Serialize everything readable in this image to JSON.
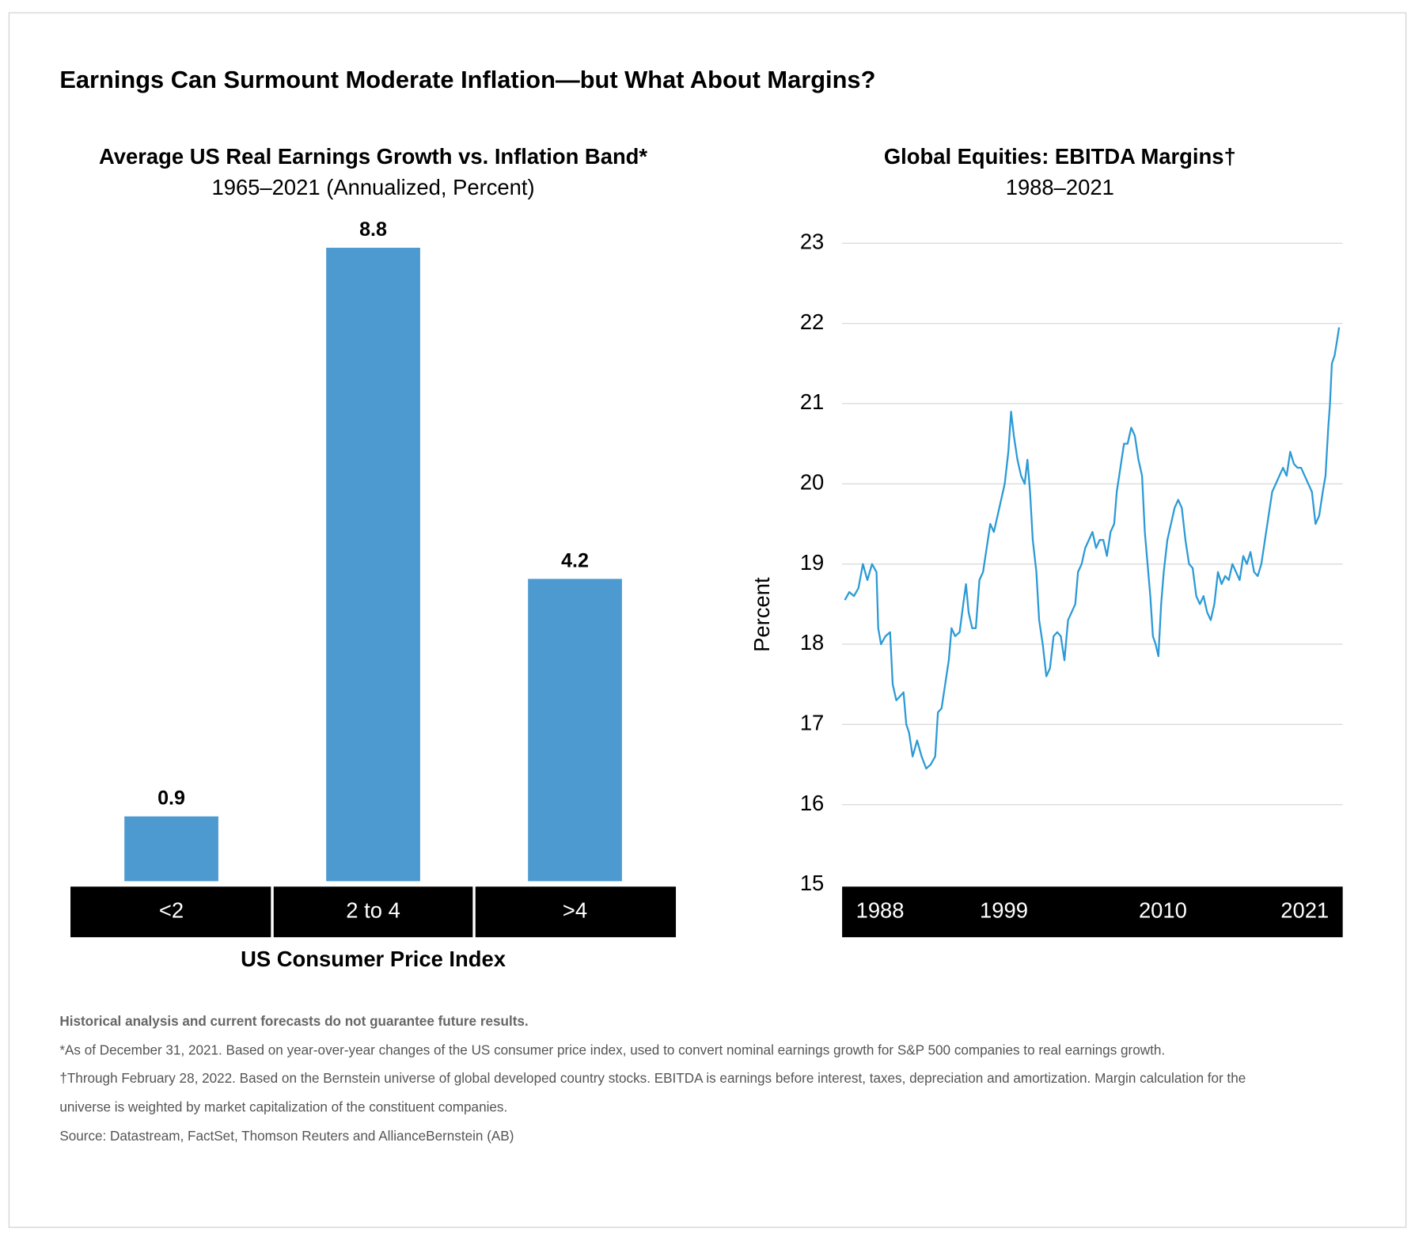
{
  "title": "Earnings Can Surmount Moderate Inflation—but What About Margins?",
  "chart_data": [
    {
      "type": "bar",
      "title": "Average US Real Earnings Growth vs. Inflation Band*",
      "subtitle": "1965–2021 (Annualized, Percent)",
      "x_label": "US Consumer Price Index",
      "categories": [
        "<2",
        "2 to 4",
        ">4"
      ],
      "values": [
        0.9,
        8.8,
        4.2
      ],
      "color": "#4d9ad1"
    },
    {
      "type": "line",
      "title": "Global Equities: EBITDA Margins†",
      "subtitle": "1988–2021",
      "y_label": "Percent",
      "color": "#2b9ad6",
      "grid": true,
      "xlim": [
        1988,
        2022.19
      ],
      "xticks": [
        1988,
        1999,
        2010,
        2021
      ],
      "ylim": [
        15,
        23
      ],
      "yticks": [
        15,
        16,
        17,
        18,
        19,
        20,
        21,
        22,
        23
      ],
      "x": [
        1988.0,
        1988.31,
        1988.63,
        1988.94,
        1989.25,
        1989.56,
        1989.88,
        1990.19,
        1990.31,
        1990.5,
        1990.81,
        1991.13,
        1991.31,
        1991.56,
        1991.81,
        1992.06,
        1992.25,
        1992.44,
        1992.69,
        1993.0,
        1993.31,
        1993.63,
        1993.94,
        1994.25,
        1994.44,
        1994.69,
        1994.94,
        1995.19,
        1995.38,
        1995.63,
        1995.94,
        1996.19,
        1996.38,
        1996.56,
        1996.81,
        1997.06,
        1997.31,
        1997.56,
        1997.81,
        1998.06,
        1998.31,
        1998.56,
        1998.81,
        1999.06,
        1999.31,
        1999.5,
        1999.69,
        1999.94,
        2000.19,
        2000.44,
        2000.63,
        2000.81,
        2001.0,
        2001.25,
        2001.44,
        2001.69,
        2001.94,
        2002.19,
        2002.44,
        2002.69,
        2002.94,
        2003.19,
        2003.44,
        2003.69,
        2003.94,
        2004.13,
        2004.38,
        2004.63,
        2004.88,
        2005.13,
        2005.38,
        2005.63,
        2005.88,
        2006.13,
        2006.38,
        2006.63,
        2006.81,
        2007.06,
        2007.31,
        2007.56,
        2007.81,
        2008.06,
        2008.31,
        2008.56,
        2008.75,
        2008.94,
        2009.13,
        2009.31,
        2009.5,
        2009.69,
        2009.88,
        2010.06,
        2010.31,
        2010.56,
        2010.81,
        2011.06,
        2011.31,
        2011.56,
        2011.81,
        2012.06,
        2012.31,
        2012.56,
        2012.81,
        2013.06,
        2013.31,
        2013.56,
        2013.81,
        2014.06,
        2014.31,
        2014.56,
        2014.81,
        2015.06,
        2015.31,
        2015.56,
        2015.81,
        2016.06,
        2016.31,
        2016.56,
        2016.81,
        2017.06,
        2017.31,
        2017.56,
        2017.81,
        2018.06,
        2018.31,
        2018.56,
        2018.81,
        2019.06,
        2019.31,
        2019.56,
        2019.81,
        2020.06,
        2020.31,
        2020.56,
        2020.81,
        2021.06,
        2021.25,
        2021.44,
        2021.56,
        2021.69,
        2021.88,
        2022.06,
        2022.19
      ],
      "values": [
        18.55,
        18.65,
        18.6,
        18.7,
        19.0,
        18.8,
        19.0,
        18.9,
        18.2,
        18.0,
        18.1,
        18.15,
        17.5,
        17.3,
        17.35,
        17.4,
        17.0,
        16.9,
        16.6,
        16.8,
        16.6,
        16.45,
        16.5,
        16.6,
        17.15,
        17.2,
        17.5,
        17.8,
        18.2,
        18.1,
        18.15,
        18.5,
        18.75,
        18.4,
        18.2,
        18.2,
        18.8,
        18.9,
        19.2,
        19.5,
        19.4,
        19.6,
        19.8,
        20.0,
        20.4,
        20.9,
        20.6,
        20.3,
        20.1,
        20.0,
        20.3,
        19.9,
        19.3,
        18.9,
        18.3,
        18.0,
        17.6,
        17.7,
        18.1,
        18.15,
        18.1,
        17.8,
        18.3,
        18.4,
        18.5,
        18.9,
        19.0,
        19.2,
        19.3,
        19.4,
        19.2,
        19.3,
        19.3,
        19.1,
        19.4,
        19.5,
        19.9,
        20.2,
        20.5,
        20.5,
        20.7,
        20.6,
        20.3,
        20.1,
        19.4,
        19.0,
        18.6,
        18.1,
        18.0,
        17.85,
        18.5,
        18.9,
        19.3,
        19.5,
        19.7,
        19.8,
        19.7,
        19.3,
        19.0,
        18.95,
        18.6,
        18.5,
        18.6,
        18.4,
        18.3,
        18.5,
        18.9,
        18.75,
        18.85,
        18.8,
        19.0,
        18.9,
        18.8,
        19.1,
        19.0,
        19.15,
        18.9,
        18.85,
        19.0,
        19.3,
        19.6,
        19.9,
        20.0,
        20.1,
        20.2,
        20.1,
        20.4,
        20.25,
        20.2,
        20.2,
        20.1,
        20.0,
        19.9,
        19.5,
        19.6,
        19.9,
        20.1,
        20.7,
        21.0,
        21.5,
        21.6,
        21.8,
        21.95
      ]
    }
  ],
  "notes": [
    "Historical analysis and current forecasts do not guarantee future results.",
    "*As of December 31, 2021. Based on year-over-year changes of the US consumer price index, used to convert nominal earnings growth for S&P 500 companies to real earnings growth.",
    "†Through February 28, 2022. Based on the Bernstein universe of global developed country stocks. EBITDA is earnings before interest, taxes, depreciation and amortization. Margin calculation for the",
    "universe is weighted by market capitalization of the constituent companies.",
    "Source: Datastream, FactSet, Thomson Reuters and AllianceBernstein (AB)"
  ]
}
